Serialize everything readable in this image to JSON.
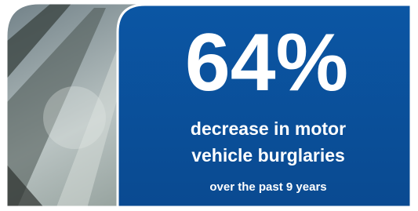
{
  "stat": "64%",
  "description": [
    "decrease in motor",
    "vehicle burglaries"
  ],
  "subtext": "over the past 9 years"
}
